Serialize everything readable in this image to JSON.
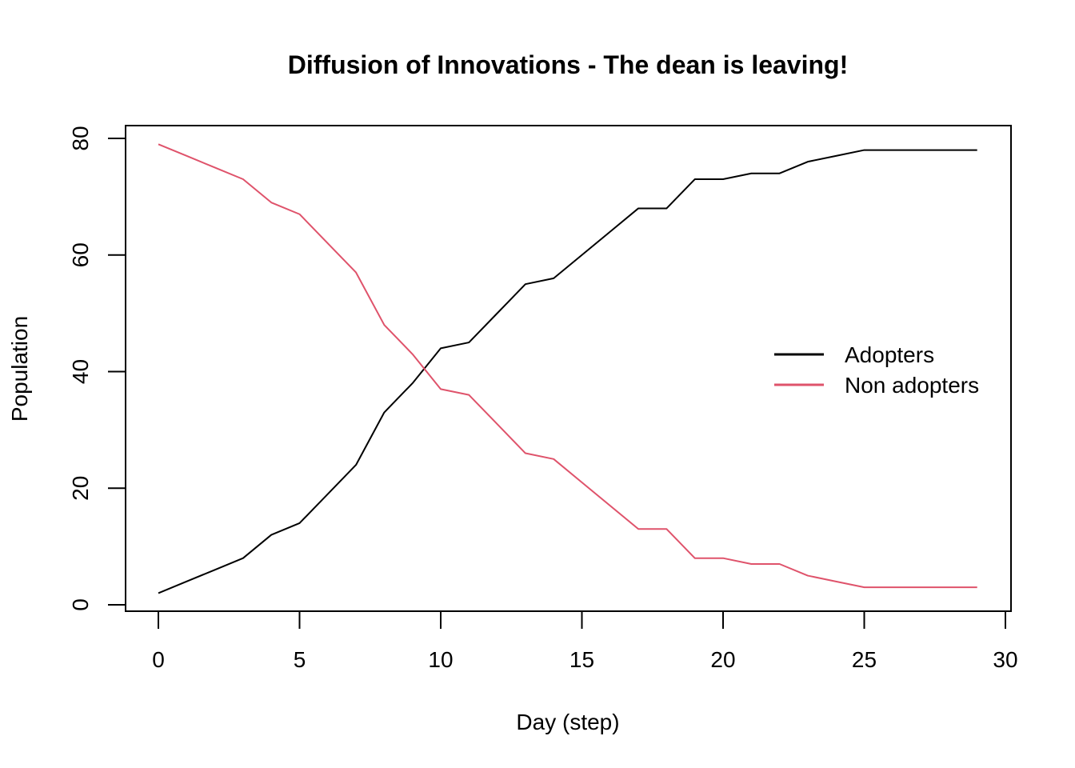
{
  "chart_data": {
    "type": "line",
    "title": "Diffusion of Innovations - The dean is leaving!",
    "xlabel": "Day (step)",
    "ylabel": "Population",
    "xlim": [
      0,
      30
    ],
    "ylim": [
      0,
      80
    ],
    "x_ticks": [
      "0",
      "5",
      "10",
      "15",
      "20",
      "25",
      "30"
    ],
    "y_ticks": [
      "0",
      "20",
      "40",
      "60",
      "80"
    ],
    "grid": false,
    "legend_position": "right",
    "x": [
      0,
      1,
      2,
      3,
      4,
      5,
      6,
      7,
      8,
      9,
      10,
      11,
      12,
      13,
      14,
      15,
      16,
      17,
      18,
      19,
      20,
      21,
      22,
      23,
      24,
      25,
      26,
      27,
      28,
      29
    ],
    "series": [
      {
        "name": "Adopters",
        "color": "#000000",
        "values": [
          2,
          4,
          6,
          8,
          12,
          14,
          19,
          24,
          33,
          38,
          44,
          45,
          50,
          55,
          56,
          60,
          64,
          68,
          68,
          73,
          73,
          74,
          74,
          76,
          77,
          78,
          78,
          78,
          78,
          78
        ]
      },
      {
        "name": "Non adopters",
        "color": "#DF536B",
        "values": [
          79,
          77,
          75,
          73,
          69,
          67,
          62,
          57,
          48,
          43,
          37,
          36,
          31,
          26,
          25,
          21,
          17,
          13,
          13,
          8,
          8,
          7,
          7,
          5,
          4,
          3,
          3,
          3,
          3,
          3
        ]
      }
    ]
  }
}
